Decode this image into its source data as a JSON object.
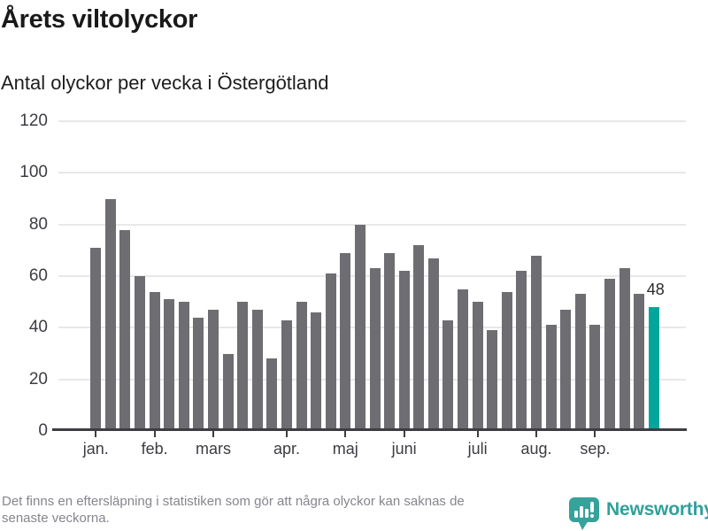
{
  "header": {
    "title": "Årets viltolyckor",
    "subtitle": "Antal olyckor per vecka i Östergötland"
  },
  "chart_data": {
    "type": "bar",
    "title": "Årets viltolyckor",
    "subtitle": "Antal olyckor per vecka i Östergötland",
    "xlabel": "",
    "ylabel": "",
    "ylim": [
      0,
      120
    ],
    "yticks": [
      0,
      20,
      40,
      60,
      80,
      100,
      120
    ],
    "grid": true,
    "legend": "none",
    "values": [
      71,
      90,
      78,
      60,
      54,
      51,
      50,
      44,
      47,
      30,
      50,
      47,
      28,
      43,
      50,
      46,
      61,
      69,
      80,
      63,
      69,
      62,
      72,
      67,
      43,
      55,
      50,
      39,
      54,
      62,
      68,
      41,
      47,
      53,
      41,
      59,
      63,
      53,
      48
    ],
    "month_ticks": [
      {
        "label": "jan.",
        "week": 1
      },
      {
        "label": "feb.",
        "week": 5
      },
      {
        "label": "mars",
        "week": 9
      },
      {
        "label": "apr.",
        "week": 14
      },
      {
        "label": "maj",
        "week": 18
      },
      {
        "label": "juni",
        "week": 22
      },
      {
        "label": "juli",
        "week": 27
      },
      {
        "label": "aug.",
        "week": 31
      },
      {
        "label": "sep.",
        "week": 35
      }
    ],
    "highlight_index": 38,
    "annotation": {
      "text": "48",
      "bar_index": 38
    },
    "colors": {
      "bar": "#6d6d72",
      "highlight": "#00a69c",
      "gridline": "#e8e8e8",
      "axis": "#3d3d42",
      "tick_label": "#3c3c42"
    }
  },
  "footer": {
    "lines": [
      "Det finns en eftersläpning i statistiken som gör att några olyckor kan saknas de",
      "senaste veckorna."
    ],
    "logo": {
      "text": "Newsworthy",
      "color": "#2fa19a",
      "icon_color": "#35a29b"
    }
  }
}
